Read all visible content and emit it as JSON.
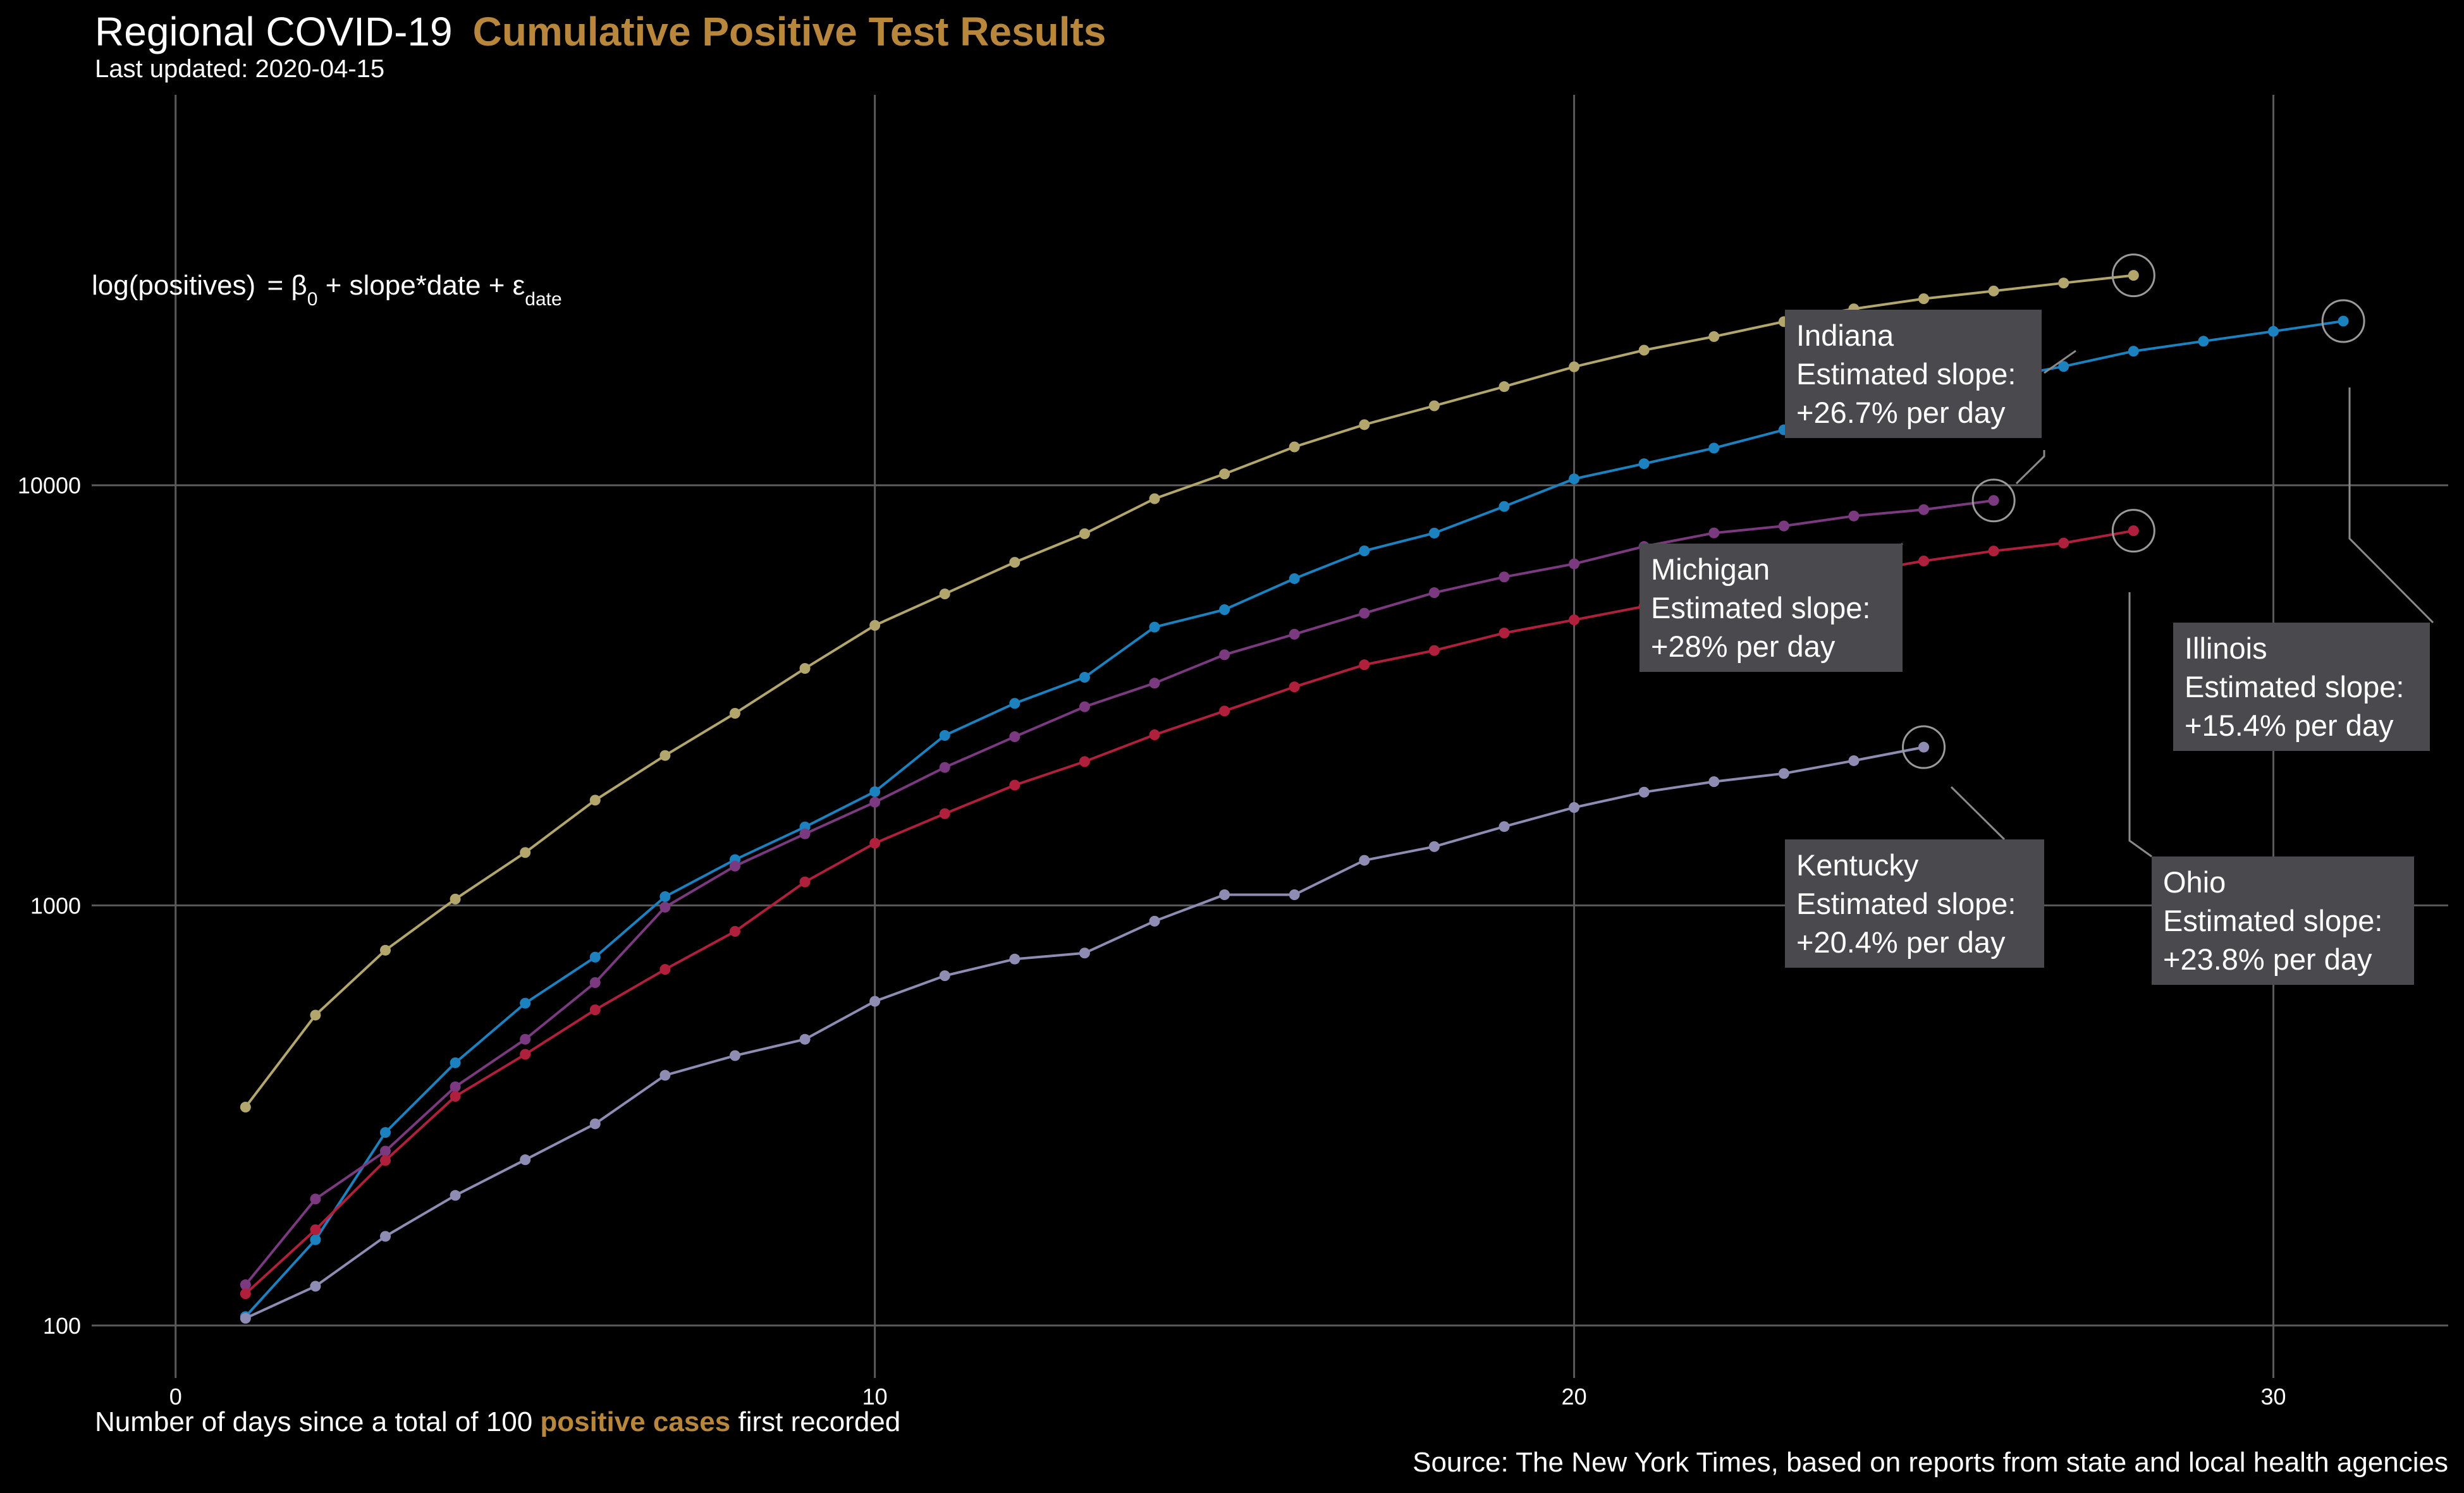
{
  "header": {
    "title_plain": "Regional COVID-19",
    "title_accent": "Cumulative Positive Test Results",
    "subtitle": "Last updated: 2020-04-15"
  },
  "formula": {
    "lhs": "log(positives)",
    "beta": "β",
    "beta_sub": "0",
    "mid": "slope*date",
    "eps": "ε",
    "eps_sub": "date"
  },
  "colors": {
    "background": "#000000",
    "accent": "#B8873C",
    "grid": "#5a5a5a",
    "label_box": "#4a4a4e",
    "Indiana": "#B2A66C",
    "Illinois": "#1B82BF",
    "Michigan": "#7B3A80",
    "Ohio": "#B0203C",
    "Kentucky": "#8E8CB3"
  },
  "chart_data": {
    "type": "line",
    "yscale": "log10",
    "xlim": [
      -1.2,
      32.5
    ],
    "ylim": [
      75,
      85000
    ],
    "x_ticks": [
      0,
      10,
      20,
      30
    ],
    "y_ticks": [
      100,
      1000,
      10000
    ],
    "grid": true,
    "xlabel_before": "Number of days since a total of 100 ",
    "xlabel_accent": "positive cases",
    "xlabel_after": " first recorded",
    "caption": "Source: The New York Times, based on reports from state and local health agencies",
    "series": [
      {
        "name": "Indiana",
        "x": [
          1,
          2,
          3,
          4,
          5,
          6,
          7,
          8,
          9,
          10,
          11,
          12,
          13,
          14,
          15,
          16,
          17,
          18,
          19,
          20,
          21,
          22,
          23,
          24,
          25,
          26,
          27,
          28
        ],
        "y": [
          331,
          548,
          782,
          1035,
          1336,
          1780,
          2274,
          2865,
          3664,
          4640,
          5512,
          6555,
          7667,
          9290,
          10640,
          12340,
          13940,
          15460,
          17170,
          19140,
          20970,
          22590,
          24520,
          26300,
          27800,
          29000,
          30300,
          31600
        ]
      },
      {
        "name": "Illinois",
        "x": [
          1,
          2,
          3,
          4,
          5,
          6,
          7,
          8,
          9,
          10,
          11,
          12,
          13,
          14,
          15,
          16,
          17,
          18,
          19,
          20,
          21,
          22,
          23,
          24,
          25,
          26,
          27,
          28,
          29,
          30,
          31
        ],
        "y": [
          105,
          160,
          288,
          422,
          585,
          753,
          1049,
          1285,
          1537,
          1865,
          2538,
          3026,
          3491,
          4596,
          5057,
          5994,
          6980,
          7695,
          8904,
          10357,
          11256,
          12262,
          13549,
          15078,
          16422,
          17887,
          19180,
          20852,
          22025,
          23247,
          24593
        ]
      },
      {
        "name": "Michigan",
        "x": [
          1,
          2,
          3,
          4,
          5,
          6,
          7,
          8,
          9,
          10,
          11,
          12,
          13,
          14,
          15,
          16,
          17,
          18,
          19,
          20,
          21,
          22,
          23,
          24,
          25,
          26
        ],
        "y": [
          125,
          200,
          260,
          370,
          480,
          655,
          990,
          1240,
          1480,
          1760,
          2130,
          2520,
          2970,
          3380,
          3950,
          4420,
          4960,
          5550,
          6050,
          6500,
          7150,
          7700,
          8000,
          8450,
          8750,
          9200
        ]
      },
      {
        "name": "Ohio",
        "x": [
          1,
          2,
          3,
          4,
          5,
          6,
          7,
          8,
          9,
          10,
          11,
          12,
          13,
          14,
          15,
          16,
          17,
          18,
          19,
          20,
          21,
          22,
          23,
          24,
          25,
          26,
          27,
          28
        ],
        "y": [
          119,
          169,
          247,
          351,
          442,
          564,
          704,
          867,
          1137,
          1406,
          1653,
          1933,
          2199,
          2547,
          2902,
          3312,
          3739,
          4043,
          4450,
          4782,
          5148,
          5512,
          5836,
          6187,
          6604,
          6975,
          7285,
          7794
        ]
      },
      {
        "name": "Kentucky",
        "x": [
          1,
          2,
          3,
          4,
          5,
          6,
          7,
          8,
          9,
          10,
          11,
          12,
          13,
          14,
          15,
          16,
          17,
          18,
          19,
          20,
          21,
          22,
          23,
          24,
          25
        ],
        "y": [
          104,
          124,
          163,
          204,
          248,
          302,
          394,
          439,
          480,
          591,
          680,
          745,
          770,
          917,
          1060,
          1060,
          1280,
          1380,
          1540,
          1710,
          1860,
          1970,
          2060,
          2210,
          2380
        ]
      }
    ],
    "annotations": [
      {
        "state": "Indiana",
        "line1": "Indiana",
        "line2": "Estimated slope:",
        "line3": "+26.7% per day"
      },
      {
        "state": "Illinois",
        "line1": "Illinois",
        "line2": "Estimated slope:",
        "line3": "+15.4% per day"
      },
      {
        "state": "Michigan",
        "line1": "Michigan",
        "line2": "Estimated slope:",
        "line3": "+28% per day"
      },
      {
        "state": "Ohio",
        "line1": "Ohio",
        "line2": "Estimated slope:",
        "line3": "+23.8% per day"
      },
      {
        "state": "Kentucky",
        "line1": "Kentucky",
        "line2": "Estimated slope:",
        "line3": "+20.4% per day"
      }
    ]
  }
}
